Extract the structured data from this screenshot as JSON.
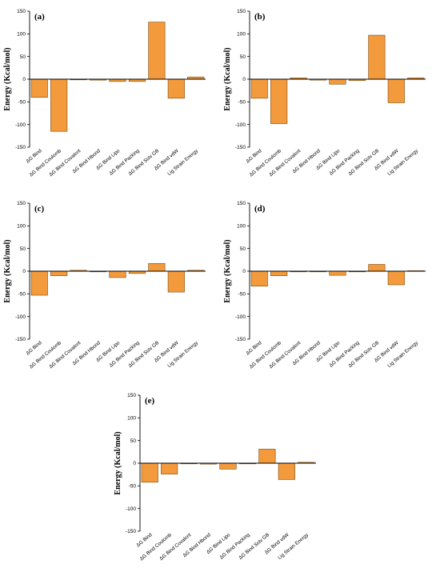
{
  "colors": {
    "bar_fill": "#f39a3c",
    "bar_edge": "#7a4a10",
    "axis": "#000000"
  },
  "chart_data": [
    {
      "type": "bar",
      "panel_label": "(a)",
      "ylabel": "Energy (Kcal/mol)",
      "ylim": [
        -150,
        150
      ],
      "yticks": [
        -150,
        -100,
        -50,
        0,
        50,
        100,
        150
      ],
      "categories": [
        "ΔG Bind",
        "ΔG Bind Coulomb",
        "ΔG Bind Covalent",
        "ΔG Bind Hbond",
        "ΔG Bind Lipo",
        "ΔG Bind Packing",
        "ΔG Bind Solv GB",
        "ΔG Bind vdW",
        "Lig Strain Energy"
      ],
      "values": [
        -40,
        -115,
        0,
        -2,
        -5,
        -5,
        126,
        -42,
        5
      ]
    },
    {
      "type": "bar",
      "panel_label": "(b)",
      "ylabel": "Energy (Kcal/mol)",
      "ylim": [
        -150,
        150
      ],
      "yticks": [
        -150,
        -100,
        -50,
        0,
        50,
        100,
        150
      ],
      "categories": [
        "ΔG Bind",
        "ΔG Bind Coulomb",
        "ΔG Bind Covalent",
        "ΔG Bind Hbond",
        "ΔG Bind Lipo",
        "ΔG Bind Packing",
        "ΔG Bind Solv GB",
        "ΔG Bind vdW",
        "Lig Strain Energy"
      ],
      "values": [
        -42,
        -98,
        3,
        -2,
        -11,
        -3,
        97,
        -52,
        3
      ]
    },
    {
      "type": "bar",
      "panel_label": "(c)",
      "ylabel": "Energy (Kcal/mol)",
      "ylim": [
        -150,
        150
      ],
      "yticks": [
        -150,
        -100,
        -50,
        0,
        50,
        100,
        150
      ],
      "categories": [
        "ΔG Bind",
        "ΔG Bind Coulomb",
        "ΔG Bind Covalent",
        "ΔG Bind Hbond",
        "ΔG Bind Lipo",
        "ΔG Bind Packing",
        "ΔG Bind Solv GB",
        "ΔG Bind vdW",
        "Lig Strain Energy"
      ],
      "values": [
        -53,
        -10,
        2,
        -1,
        -14,
        -5,
        17,
        -46,
        2
      ]
    },
    {
      "type": "bar",
      "panel_label": "(d)",
      "ylabel": "Energy (Kcal/mol)",
      "ylim": [
        -150,
        150
      ],
      "yticks": [
        -150,
        -100,
        -50,
        0,
        50,
        100,
        150
      ],
      "categories": [
        "ΔG Bind",
        "ΔG Bind Coulomb",
        "ΔG Bind Covalent",
        "ΔG Bind Hbond",
        "ΔG Bind Lipo",
        "ΔG Bind Packing",
        "ΔG Bind Solv GB",
        "ΔG Bind vdW",
        "Lig Strain Energy"
      ],
      "values": [
        -33,
        -10,
        0,
        -1,
        -9,
        0,
        15,
        -30,
        1
      ]
    },
    {
      "type": "bar",
      "panel_label": "(e)",
      "ylabel": "Energy (Kcal/mol)",
      "ylim": [
        -150,
        150
      ],
      "yticks": [
        -150,
        -100,
        -50,
        0,
        50,
        100,
        150
      ],
      "categories": [
        "ΔG Bind",
        "ΔG Bind Coulomb",
        "ΔG Bind Covalent",
        "ΔG Bind Hbond",
        "ΔG Bind Lipo",
        "ΔG Bind Packing",
        "ΔG Bind Solv GB",
        "ΔG Bind vdW",
        "Lig Strain Energy"
      ],
      "values": [
        -42,
        -24,
        0,
        -2,
        -13,
        0,
        31,
        -36,
        2
      ]
    }
  ]
}
